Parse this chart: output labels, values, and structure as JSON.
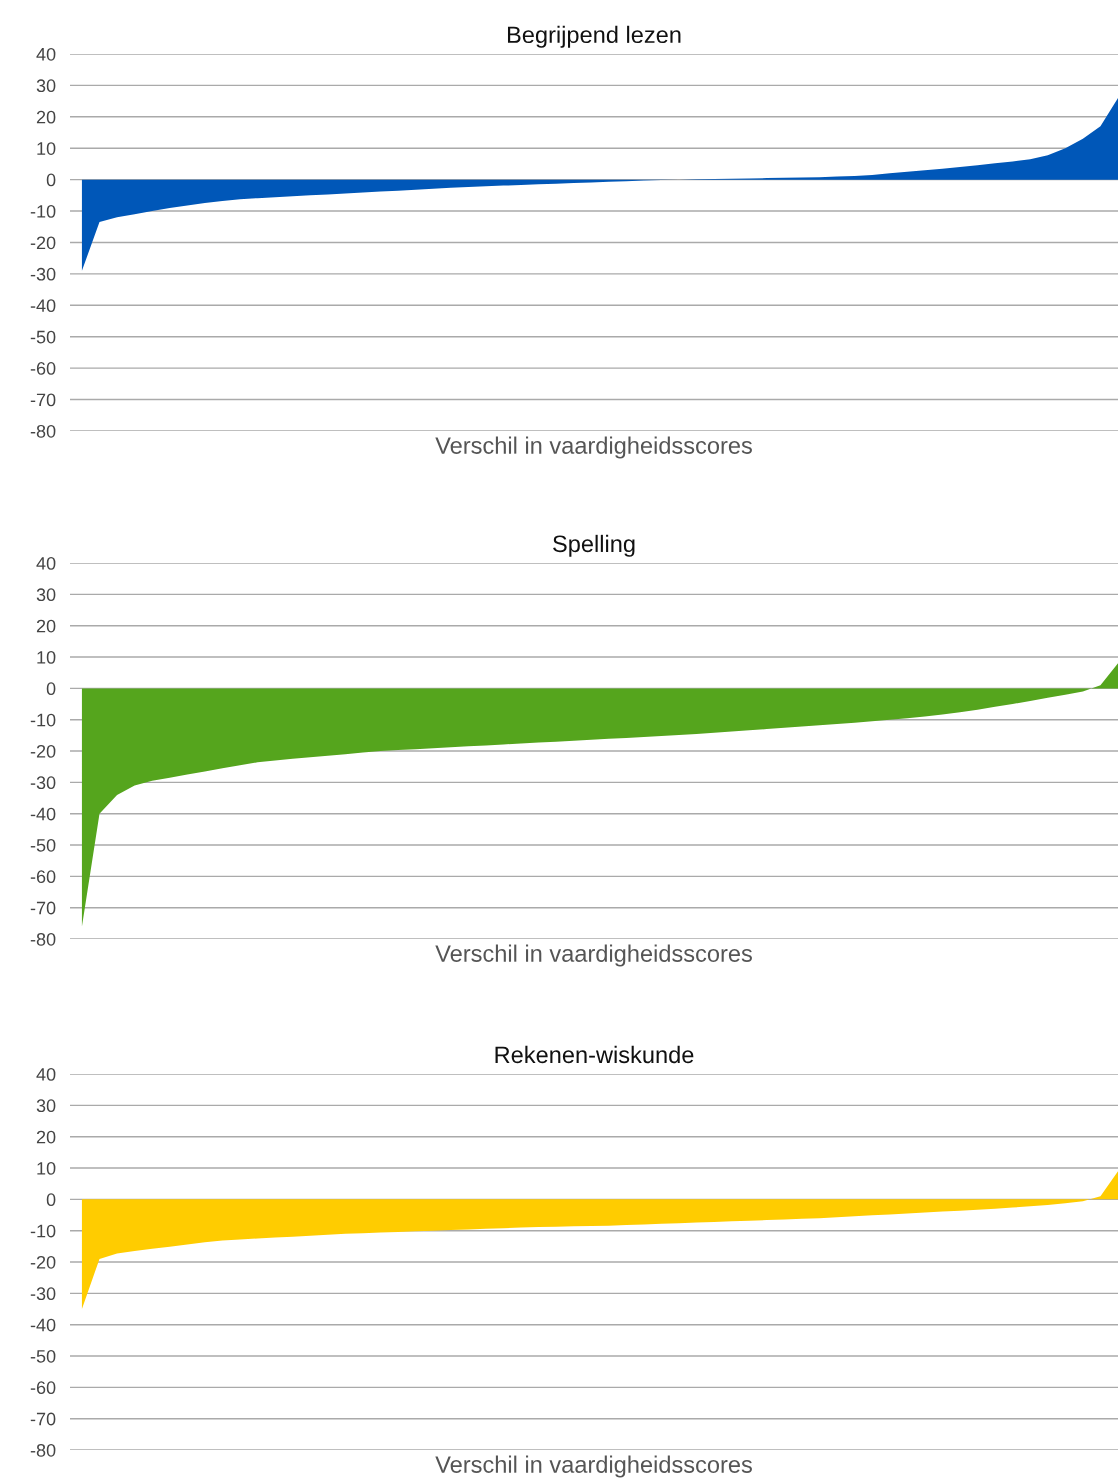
{
  "chart_data": [
    {
      "type": "area",
      "title": "Begrijpend lezen",
      "xlabel": "Verschil in vaardigheidsscores",
      "categories": [
        null,
        null,
        null,
        null,
        null,
        null,
        null,
        null,
        null,
        null,
        null,
        null,
        null,
        null,
        null,
        null,
        null,
        null,
        null,
        null,
        null,
        null,
        null,
        null,
        null,
        null,
        null,
        null,
        null,
        null,
        null,
        null,
        null,
        null,
        null,
        null,
        null,
        null,
        null,
        null,
        null,
        null,
        null,
        null,
        null,
        null,
        null,
        null,
        null,
        null,
        null,
        null,
        null,
        null,
        null,
        null,
        null,
        null,
        null,
        null
      ],
      "series": [
        {
          "color": "#0057b8",
          "values": [
            -29,
            -13.5,
            -12,
            -11,
            -10,
            -9,
            -8.2,
            -7.4,
            -6.8,
            -6.2,
            -5.9,
            -5.6,
            -5.3,
            -5.0,
            -4.7,
            -4.4,
            -4.1,
            -3.8,
            -3.5,
            -3.2,
            -2.9,
            -2.6,
            -2.3,
            -2.1,
            -1.9,
            -1.7,
            -1.5,
            -1.3,
            -1.1,
            -0.9,
            -0.7,
            -0.5,
            -0.3,
            -0.1,
            0,
            0.1,
            0.2,
            0.3,
            0.4,
            0.5,
            0.6,
            0.7,
            0.8,
            1.0,
            1.2,
            1.5,
            2.0,
            2.5,
            3.0,
            3.5,
            4.0,
            4.6,
            5.2,
            5.8,
            6.5,
            7.8,
            10,
            13,
            17,
            26
          ]
        }
      ],
      "ylim": [
        -80,
        40
      ],
      "yticks": [
        -80,
        -70,
        -60,
        -50,
        -40,
        -30,
        -20,
        -10,
        0,
        10,
        20,
        30,
        40
      ],
      "grid": "y",
      "tick_labels": "y"
    },
    {
      "type": "area",
      "title": "Spelling",
      "xlabel": "Verschil in vaardigheidsscores",
      "categories": [
        null,
        null,
        null,
        null,
        null,
        null,
        null,
        null,
        null,
        null,
        null,
        null,
        null,
        null,
        null,
        null,
        null,
        null,
        null,
        null,
        null,
        null,
        null,
        null,
        null,
        null,
        null,
        null,
        null,
        null,
        null,
        null,
        null,
        null,
        null,
        null,
        null,
        null,
        null,
        null,
        null,
        null,
        null,
        null,
        null,
        null,
        null,
        null,
        null,
        null,
        null,
        null,
        null,
        null,
        null,
        null,
        null,
        null,
        null,
        null
      ],
      "series": [
        {
          "color": "#55a51d",
          "values": [
            -76,
            -40,
            -34,
            -31,
            -29.5,
            -28.5,
            -27.5,
            -26.5,
            -25.5,
            -24.5,
            -23.6,
            -23,
            -22.5,
            -22,
            -21.5,
            -21,
            -20.5,
            -20,
            -19.7,
            -19.4,
            -19.1,
            -18.8,
            -18.5,
            -18.2,
            -17.9,
            -17.6,
            -17.3,
            -17.0,
            -16.7,
            -16.4,
            -16.1,
            -15.8,
            -15.5,
            -15.2,
            -14.9,
            -14.6,
            -14.2,
            -13.8,
            -13.4,
            -13.0,
            -12.6,
            -12.2,
            -11.8,
            -11.4,
            -11,
            -10.5,
            -10,
            -9.5,
            -9.0,
            -8.3,
            -7.6,
            -6.8,
            -5.9,
            -5,
            -4,
            -3,
            -2,
            -1,
            1,
            8
          ]
        }
      ],
      "ylim": [
        -80,
        40
      ],
      "yticks": [
        -80,
        -70,
        -60,
        -50,
        -40,
        -30,
        -20,
        -10,
        0,
        10,
        20,
        30,
        40
      ],
      "grid": "y",
      "tick_labels": "y"
    },
    {
      "type": "area",
      "title": "Rekenen-wiskunde",
      "xlabel": "Verschil in vaardigheidsscores",
      "categories": [
        null,
        null,
        null,
        null,
        null,
        null,
        null,
        null,
        null,
        null,
        null,
        null,
        null,
        null,
        null,
        null,
        null,
        null,
        null,
        null,
        null,
        null,
        null,
        null,
        null,
        null,
        null,
        null,
        null,
        null,
        null,
        null,
        null,
        null,
        null,
        null,
        null,
        null,
        null,
        null,
        null,
        null,
        null,
        null,
        null,
        null,
        null,
        null,
        null,
        null,
        null,
        null,
        null,
        null,
        null,
        null,
        null,
        null,
        null,
        null
      ],
      "series": [
        {
          "color": "#ffcc00",
          "values": [
            -35,
            -19,
            -17.3,
            -16.5,
            -15.8,
            -15.1,
            -14.4,
            -13.7,
            -13.1,
            -12.8,
            -12.5,
            -12.2,
            -11.9,
            -11.6,
            -11.3,
            -11.0,
            -10.8,
            -10.6,
            -10.4,
            -10.2,
            -10.0,
            -9.8,
            -9.6,
            -9.4,
            -9.2,
            -9.0,
            -8.8,
            -8.7,
            -8.6,
            -8.5,
            -8.4,
            -8.2,
            -8.0,
            -7.8,
            -7.6,
            -7.4,
            -7.2,
            -7.0,
            -6.8,
            -6.6,
            -6.4,
            -6.2,
            -6.0,
            -5.7,
            -5.4,
            -5.1,
            -4.8,
            -4.5,
            -4.2,
            -3.9,
            -3.6,
            -3.3,
            -3.0,
            -2.6,
            -2.2,
            -1.8,
            -1.2,
            -0.6,
            1,
            9
          ]
        }
      ],
      "ylim": [
        -80,
        40
      ],
      "yticks": [
        -80,
        -70,
        -60,
        -50,
        -40,
        -30,
        -20,
        -10,
        0,
        10,
        20,
        30,
        40
      ],
      "grid": "y",
      "tick_labels": "y"
    }
  ]
}
